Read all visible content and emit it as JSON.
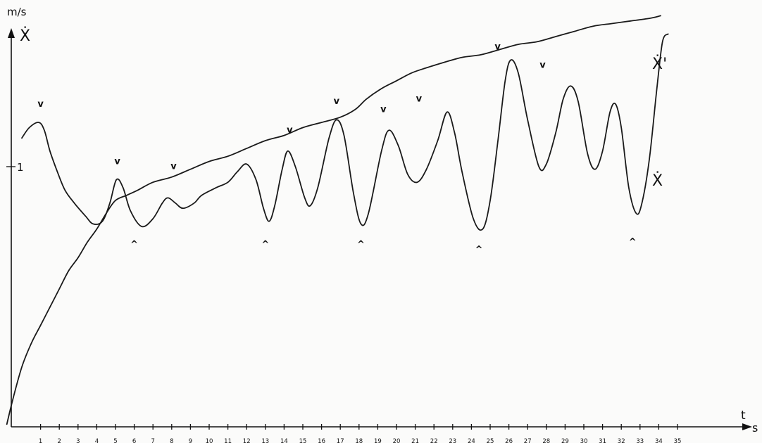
{
  "chart_data": {
    "type": "line",
    "y_unit": "m/s",
    "y_symbol": "Ẋ",
    "x_symbol": "t",
    "x_unit": "s",
    "xlim": [
      0,
      36
    ],
    "ylim": [
      0,
      1.8
    ],
    "x_ticks": [
      1,
      2,
      3,
      4,
      5,
      6,
      7,
      8,
      9,
      10,
      11,
      12,
      13,
      14,
      15,
      16,
      17,
      18,
      19,
      20,
      21,
      22,
      23,
      24,
      25,
      26,
      27,
      28,
      29,
      30,
      31,
      32,
      33,
      34,
      35
    ],
    "y_ticks": [
      {
        "value": 1,
        "label": "1"
      }
    ],
    "series": [
      {
        "name": "Ẋ'",
        "points": [
          [
            0,
            1.11
          ],
          [
            0.4,
            1.15
          ],
          [
            0.9,
            1.17
          ],
          [
            1.2,
            1.14
          ],
          [
            1.5,
            1.06
          ],
          [
            1.9,
            0.98
          ],
          [
            2.3,
            0.91
          ],
          [
            2.8,
            0.86
          ],
          [
            3.4,
            0.81
          ],
          [
            3.8,
            0.78
          ],
          [
            4.3,
            0.79
          ],
          [
            4.7,
            0.86
          ],
          [
            5.05,
            0.95
          ],
          [
            5.4,
            0.92
          ],
          [
            5.8,
            0.83
          ],
          [
            6.4,
            0.77
          ],
          [
            7.0,
            0.8
          ],
          [
            7.5,
            0.86
          ],
          [
            7.8,
            0.88
          ],
          [
            8.2,
            0.86
          ],
          [
            8.6,
            0.84
          ],
          [
            9.2,
            0.86
          ],
          [
            9.6,
            0.89
          ],
          [
            10.4,
            0.92
          ],
          [
            11.0,
            0.94
          ],
          [
            11.5,
            0.98
          ],
          [
            12.0,
            1.01
          ],
          [
            12.5,
            0.95
          ],
          [
            12.9,
            0.84
          ],
          [
            13.2,
            0.79
          ],
          [
            13.5,
            0.85
          ],
          [
            13.9,
            0.99
          ],
          [
            14.2,
            1.06
          ],
          [
            14.6,
            1.0
          ],
          [
            15.1,
            0.88
          ],
          [
            15.4,
            0.85
          ],
          [
            15.8,
            0.92
          ],
          [
            16.4,
            1.11
          ],
          [
            16.8,
            1.18
          ],
          [
            17.2,
            1.12
          ],
          [
            17.7,
            0.9
          ],
          [
            18.1,
            0.78
          ],
          [
            18.5,
            0.82
          ],
          [
            19.2,
            1.06
          ],
          [
            19.6,
            1.14
          ],
          [
            20.1,
            1.08
          ],
          [
            20.6,
            0.97
          ],
          [
            21.1,
            0.94
          ],
          [
            21.6,
            0.99
          ],
          [
            22.2,
            1.1
          ],
          [
            22.7,
            1.21
          ],
          [
            23.1,
            1.13
          ],
          [
            23.5,
            0.98
          ],
          [
            24.1,
            0.8
          ],
          [
            24.6,
            0.76
          ],
          [
            25.0,
            0.87
          ],
          [
            25.4,
            1.09
          ],
          [
            25.8,
            1.33
          ],
          [
            26.1,
            1.41
          ],
          [
            26.5,
            1.36
          ],
          [
            27.0,
            1.18
          ],
          [
            27.6,
            1.0
          ],
          [
            28.0,
            1.01
          ],
          [
            28.5,
            1.13
          ],
          [
            28.9,
            1.26
          ],
          [
            29.3,
            1.31
          ],
          [
            29.7,
            1.25
          ],
          [
            30.2,
            1.05
          ],
          [
            30.6,
            0.99
          ],
          [
            31.0,
            1.06
          ],
          [
            31.4,
            1.21
          ],
          [
            31.7,
            1.24
          ],
          [
            32.0,
            1.15
          ],
          [
            32.4,
            0.92
          ],
          [
            32.8,
            0.82
          ],
          [
            33.1,
            0.86
          ],
          [
            33.5,
            1.03
          ],
          [
            33.9,
            1.3
          ],
          [
            34.2,
            1.48
          ],
          [
            34.5,
            1.51
          ]
        ]
      },
      {
        "name": "Ẋ",
        "points": [
          [
            -0.8,
            0.01
          ],
          [
            -0.5,
            0.1
          ],
          [
            0,
            0.23
          ],
          [
            0.5,
            0.32
          ],
          [
            1.0,
            0.39
          ],
          [
            1.5,
            0.46
          ],
          [
            2.0,
            0.53
          ],
          [
            2.5,
            0.6
          ],
          [
            3.0,
            0.65
          ],
          [
            3.5,
            0.71
          ],
          [
            4.0,
            0.76
          ],
          [
            4.5,
            0.82
          ],
          [
            5.0,
            0.87
          ],
          [
            5.6,
            0.89
          ],
          [
            6.2,
            0.91
          ],
          [
            7.0,
            0.94
          ],
          [
            8.0,
            0.96
          ],
          [
            9.0,
            0.99
          ],
          [
            10.0,
            1.02
          ],
          [
            11.0,
            1.04
          ],
          [
            12.0,
            1.07
          ],
          [
            13.0,
            1.1
          ],
          [
            14.0,
            1.12
          ],
          [
            15.0,
            1.15
          ],
          [
            16.0,
            1.17
          ],
          [
            17.0,
            1.19
          ],
          [
            17.8,
            1.22
          ],
          [
            18.4,
            1.26
          ],
          [
            19.2,
            1.3
          ],
          [
            20.0,
            1.33
          ],
          [
            20.8,
            1.36
          ],
          [
            21.6,
            1.38
          ],
          [
            22.5,
            1.4
          ],
          [
            23.5,
            1.42
          ],
          [
            24.5,
            1.43
          ],
          [
            25.5,
            1.45
          ],
          [
            26.5,
            1.47
          ],
          [
            27.5,
            1.48
          ],
          [
            28.5,
            1.5
          ],
          [
            29.5,
            1.52
          ],
          [
            30.5,
            1.54
          ],
          [
            31.5,
            1.55
          ],
          [
            32.5,
            1.56
          ],
          [
            33.5,
            1.57
          ],
          [
            34.1,
            1.58
          ]
        ]
      }
    ],
    "annotations": [
      {
        "text": "v",
        "x": 1.0,
        "y": 1.23
      },
      {
        "text": "v",
        "x": 5.1,
        "y": 1.01
      },
      {
        "text": "v",
        "x": 8.1,
        "y": 0.99
      },
      {
        "text": "v",
        "x": 14.3,
        "y": 1.13
      },
      {
        "text": "v",
        "x": 16.8,
        "y": 1.24
      },
      {
        "text": "v",
        "x": 19.3,
        "y": 1.21
      },
      {
        "text": "v",
        "x": 21.2,
        "y": 1.25
      },
      {
        "text": "v",
        "x": 25.4,
        "y": 1.45
      },
      {
        "text": "v",
        "x": 27.8,
        "y": 1.38
      },
      {
        "text": "^",
        "x": 6.0,
        "y": 0.69
      },
      {
        "text": "^",
        "x": 13.0,
        "y": 0.69
      },
      {
        "text": "^",
        "x": 18.1,
        "y": 0.69
      },
      {
        "text": "^",
        "x": 24.4,
        "y": 0.67
      },
      {
        "text": "^",
        "x": 32.6,
        "y": 0.7
      }
    ],
    "grid": false,
    "legend": "none"
  }
}
